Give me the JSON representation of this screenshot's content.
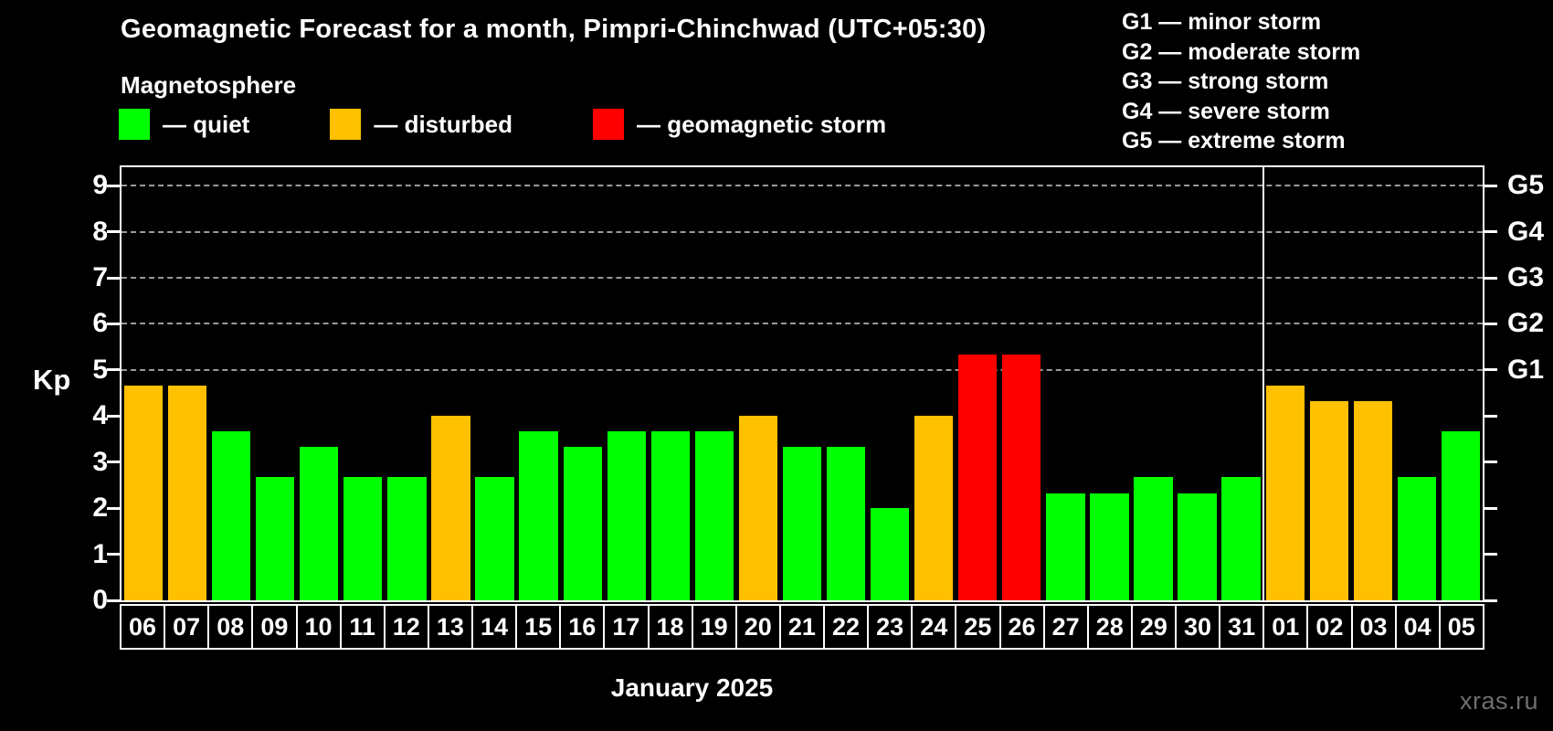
{
  "header": {
    "title": "Geomagnetic Forecast for a month, Pimpri-Chinchwad (UTC+05:30)",
    "subtitle": "Magnetosphere"
  },
  "colors": {
    "quiet": "#00ff00",
    "disturbed": "#ffc000",
    "storm": "#ff0000",
    "background": "#000000",
    "axis": "#ffffff",
    "grid": "#9a9a9a",
    "watermark": "#6f6f6f"
  },
  "legend": {
    "items": [
      {
        "key": "quiet",
        "label": "— quiet"
      },
      {
        "key": "disturbed",
        "label": "— disturbed"
      },
      {
        "key": "storm",
        "label": "— geomagnetic storm"
      }
    ]
  },
  "g_scale_legend": {
    "items": [
      "G1 — minor storm",
      "G2 — moderate storm",
      "G3 — strong storm",
      "G4 — severe storm",
      "G5 — extreme storm"
    ]
  },
  "watermark": "xras.ru",
  "chart_data": {
    "type": "bar",
    "title": "Geomagnetic Forecast for a month, Pimpri-Chinchwad (UTC+05:30)",
    "xlabel": "January 2025",
    "ylabel": "Kp",
    "ylim": [
      0,
      9.4
    ],
    "yticks": [
      0,
      1,
      2,
      3,
      4,
      5,
      6,
      7,
      8,
      9
    ],
    "gridlines_kp": [
      5,
      6,
      7,
      8,
      9
    ],
    "grid": "dashed",
    "legend_position": "top",
    "right_axis": [
      {
        "kp": 5,
        "label": "G1"
      },
      {
        "kp": 6,
        "label": "G2"
      },
      {
        "kp": 7,
        "label": "G3"
      },
      {
        "kp": 8,
        "label": "G4"
      },
      {
        "kp": 9,
        "label": "G5"
      }
    ],
    "month_label": "January 2025",
    "separator_after_index": 25,
    "bars": [
      {
        "day": "06",
        "kp": 4.67,
        "status": "disturbed"
      },
      {
        "day": "07",
        "kp": 4.67,
        "status": "disturbed"
      },
      {
        "day": "08",
        "kp": 3.67,
        "status": "quiet"
      },
      {
        "day": "09",
        "kp": 2.67,
        "status": "quiet"
      },
      {
        "day": "10",
        "kp": 3.33,
        "status": "quiet"
      },
      {
        "day": "11",
        "kp": 2.67,
        "status": "quiet"
      },
      {
        "day": "12",
        "kp": 2.67,
        "status": "quiet"
      },
      {
        "day": "13",
        "kp": 4.0,
        "status": "disturbed"
      },
      {
        "day": "14",
        "kp": 2.67,
        "status": "quiet"
      },
      {
        "day": "15",
        "kp": 3.67,
        "status": "quiet"
      },
      {
        "day": "16",
        "kp": 3.33,
        "status": "quiet"
      },
      {
        "day": "17",
        "kp": 3.67,
        "status": "quiet"
      },
      {
        "day": "18",
        "kp": 3.67,
        "status": "quiet"
      },
      {
        "day": "19",
        "kp": 3.67,
        "status": "quiet"
      },
      {
        "day": "20",
        "kp": 4.0,
        "status": "disturbed"
      },
      {
        "day": "21",
        "kp": 3.33,
        "status": "quiet"
      },
      {
        "day": "22",
        "kp": 3.33,
        "status": "quiet"
      },
      {
        "day": "23",
        "kp": 2.0,
        "status": "quiet"
      },
      {
        "day": "24",
        "kp": 4.0,
        "status": "disturbed"
      },
      {
        "day": "25",
        "kp": 5.33,
        "status": "storm"
      },
      {
        "day": "26",
        "kp": 5.33,
        "status": "storm"
      },
      {
        "day": "27",
        "kp": 2.33,
        "status": "quiet"
      },
      {
        "day": "28",
        "kp": 2.33,
        "status": "quiet"
      },
      {
        "day": "29",
        "kp": 2.67,
        "status": "quiet"
      },
      {
        "day": "30",
        "kp": 2.33,
        "status": "quiet"
      },
      {
        "day": "31",
        "kp": 2.67,
        "status": "quiet"
      },
      {
        "day": "01",
        "kp": 4.67,
        "status": "disturbed"
      },
      {
        "day": "02",
        "kp": 4.33,
        "status": "disturbed"
      },
      {
        "day": "03",
        "kp": 4.33,
        "status": "disturbed"
      },
      {
        "day": "04",
        "kp": 2.67,
        "status": "quiet"
      },
      {
        "day": "05",
        "kp": 3.67,
        "status": "quiet"
      }
    ]
  }
}
